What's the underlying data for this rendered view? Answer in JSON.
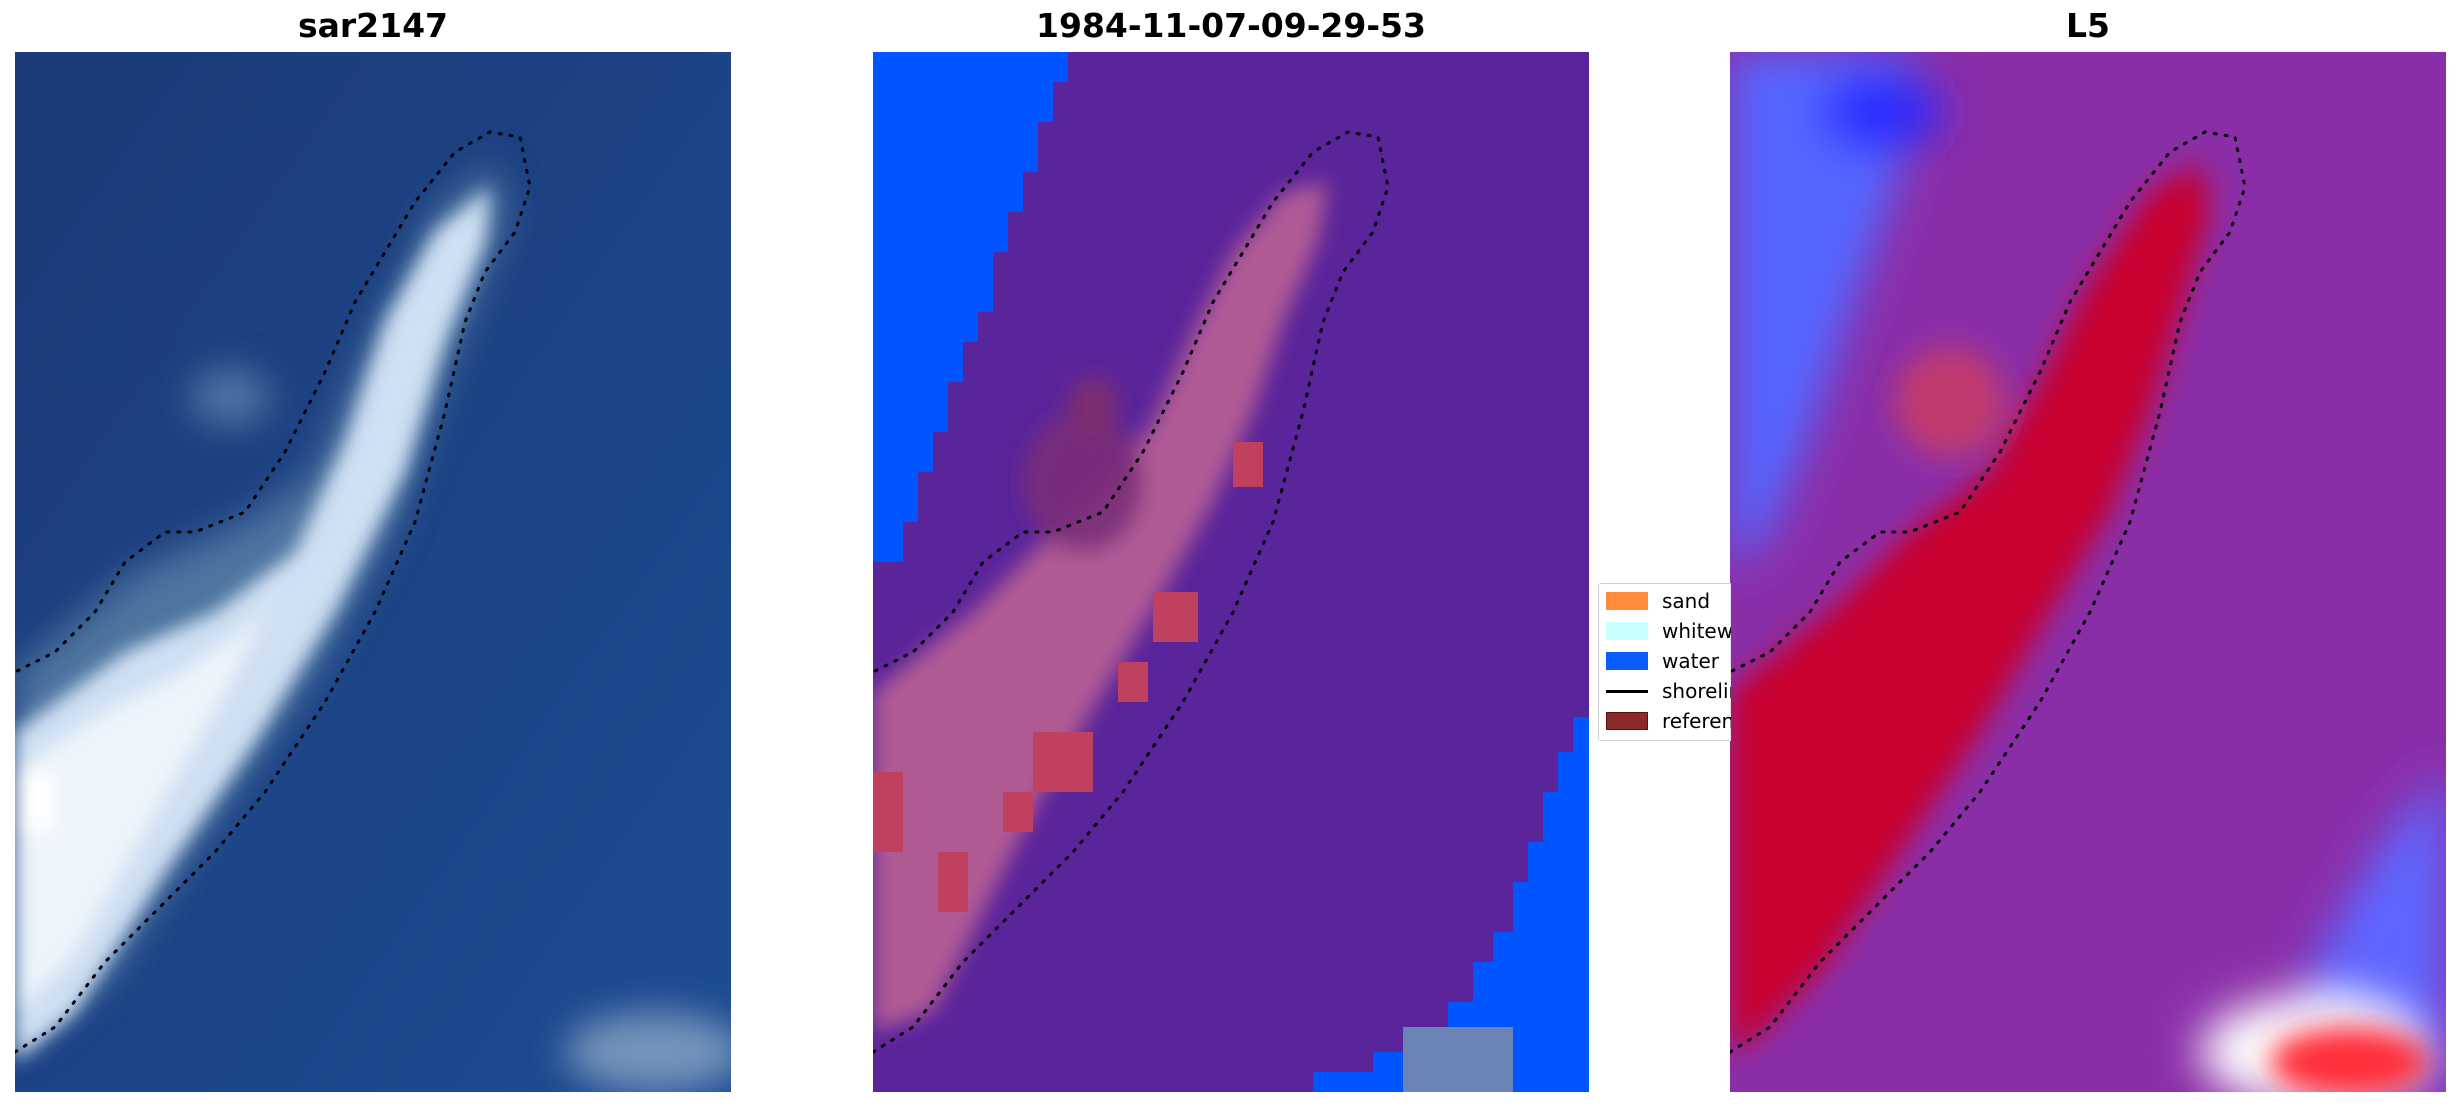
{
  "panels": {
    "left": {
      "title": "sar2147"
    },
    "middle": {
      "title": "1984-11-07-09-29-53"
    },
    "right": {
      "title": "L5"
    }
  },
  "legend": {
    "items": [
      {
        "label": "sand",
        "color": "#ff8c3a",
        "kind": "patch"
      },
      {
        "label": "whitewater",
        "color": "#c8ffff",
        "kind": "patch"
      },
      {
        "label": "water",
        "color": "#0b5cff",
        "kind": "patch"
      },
      {
        "label": "shoreline",
        "color": "#000000",
        "kind": "line"
      },
      {
        "label": "reference shoreline",
        "color": "#8b2a2a",
        "kind": "patch"
      }
    ]
  },
  "colors": {
    "sar_water": "#1e3c7a",
    "sar_sand": "#cfe0f3",
    "class_water": "#0055ff",
    "class_land_overlay": "#5a249a",
    "class_sand_overlay": "#b04080",
    "index_background": "#8a2ea8",
    "index_high": "#c8002e",
    "index_water": "#5566ff"
  }
}
